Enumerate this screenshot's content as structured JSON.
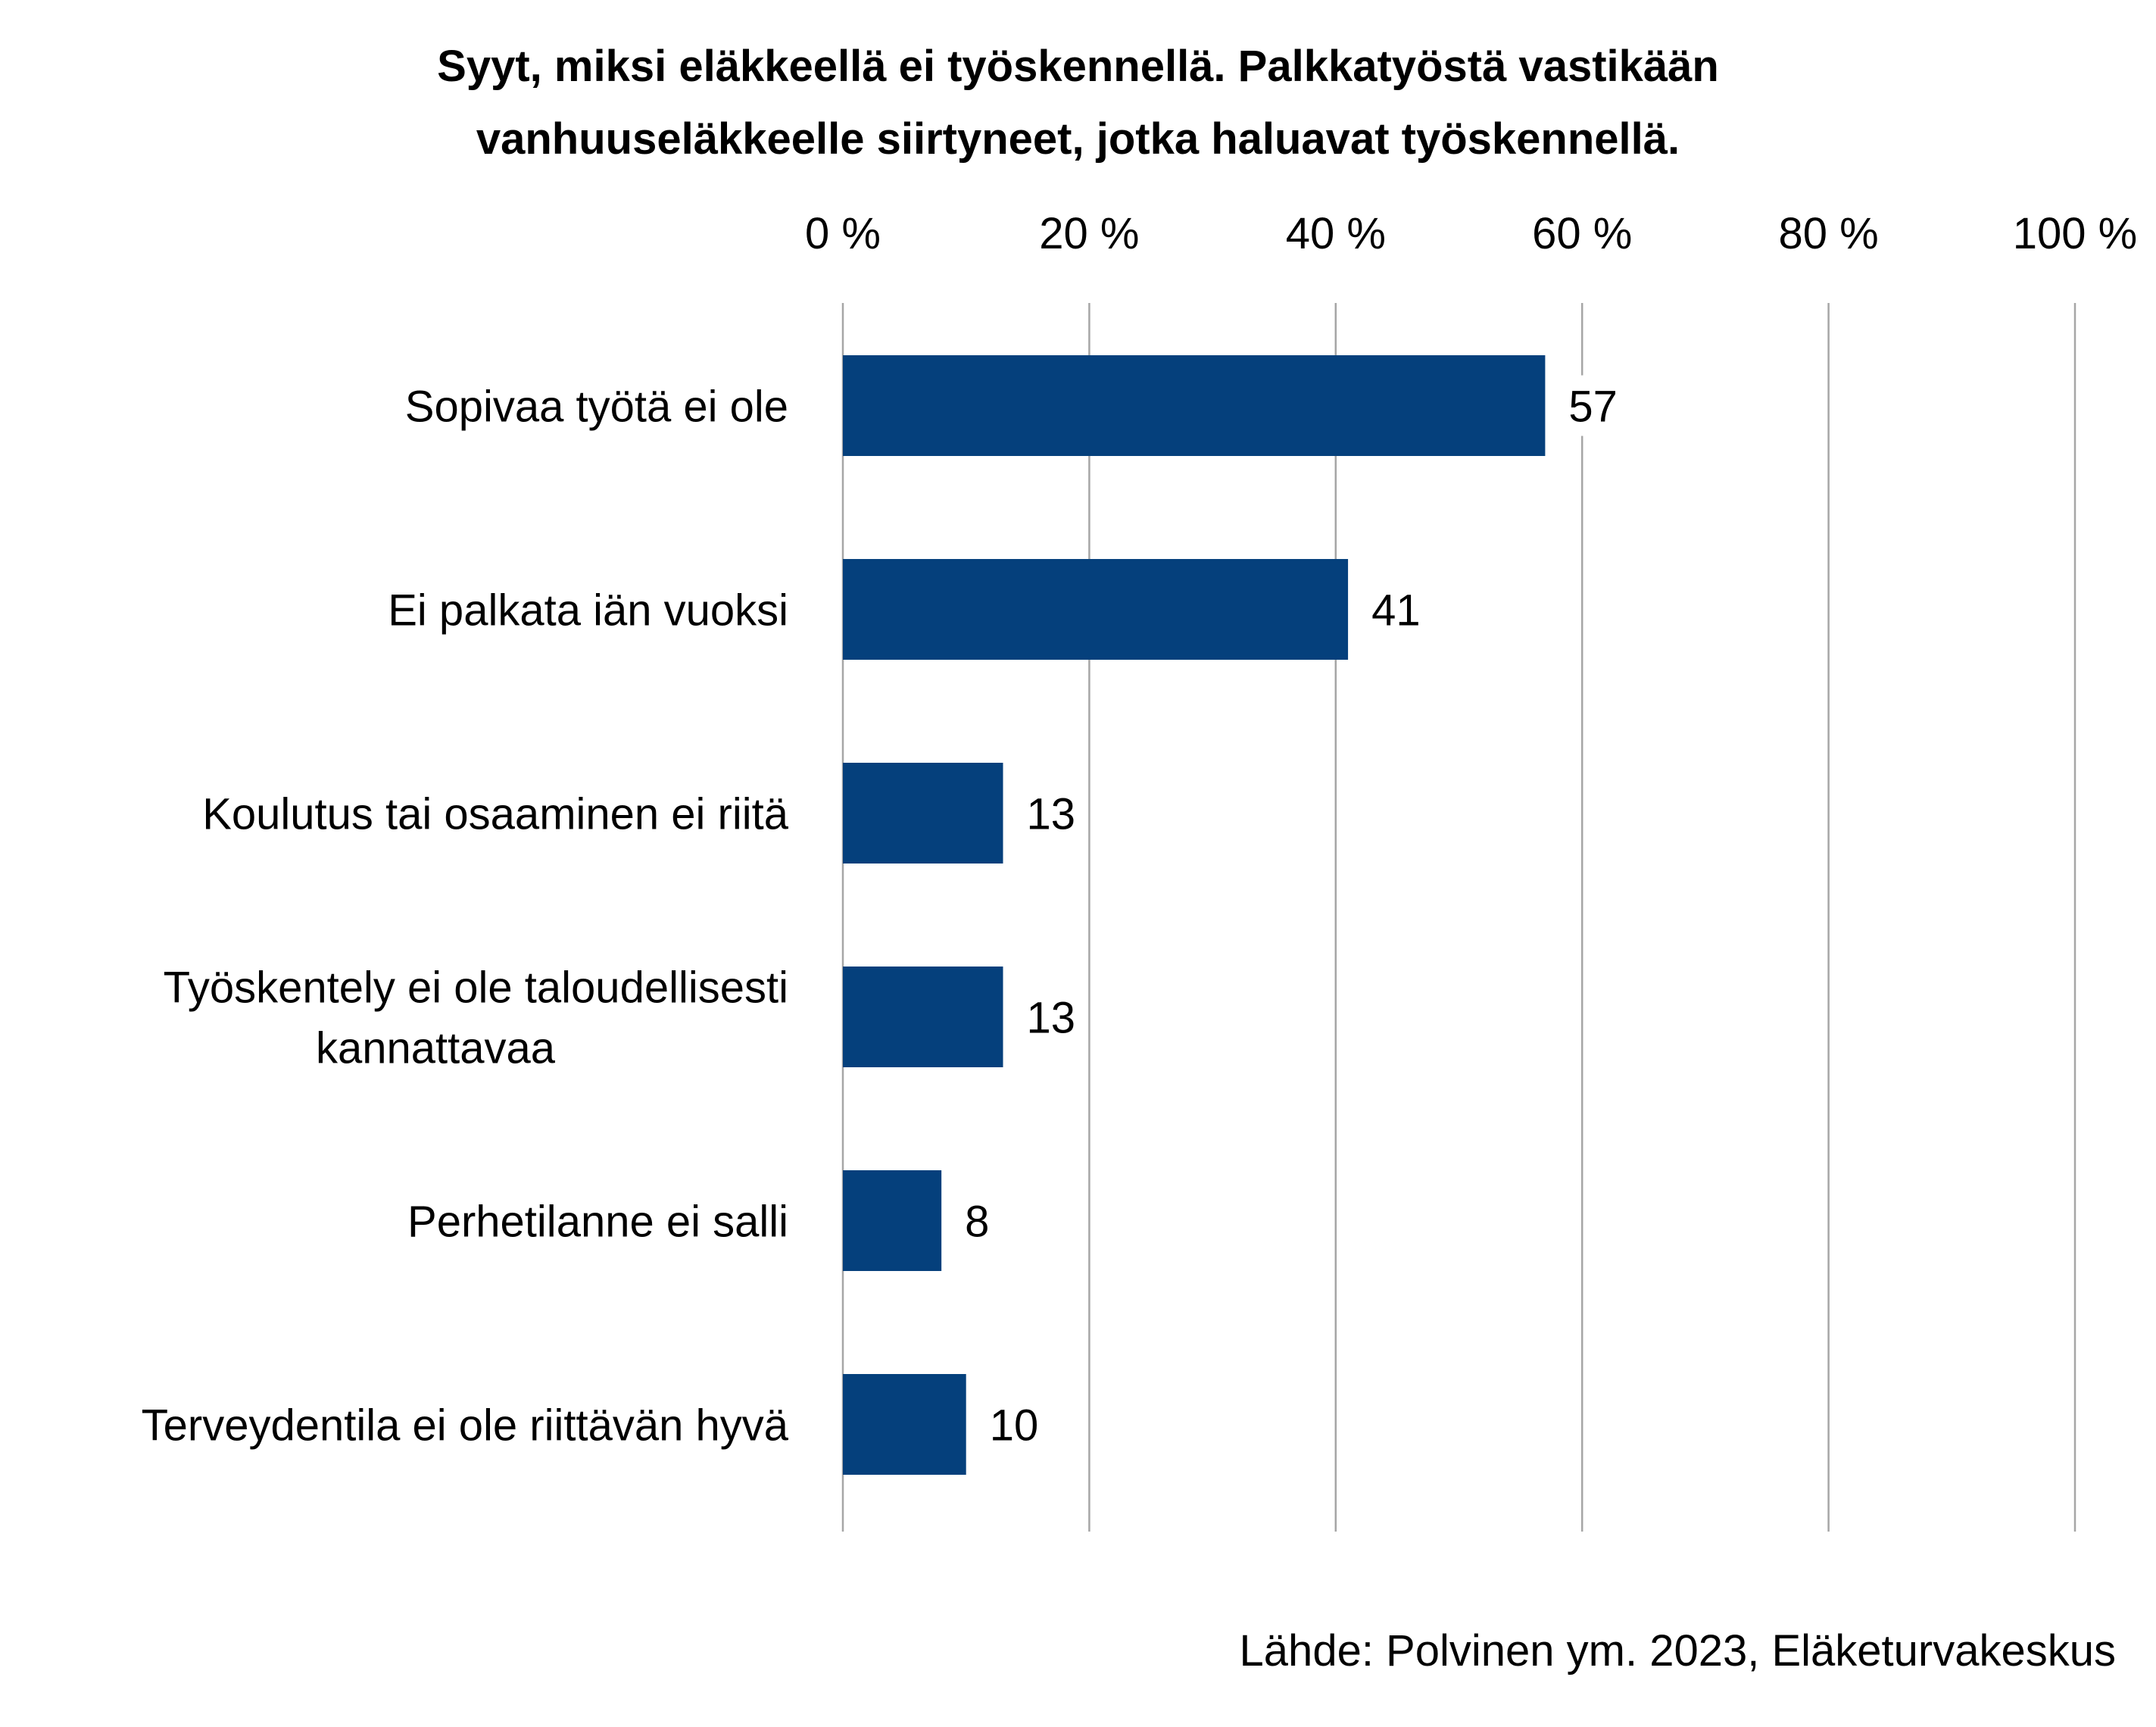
{
  "chart_data": {
    "type": "bar",
    "orientation": "horizontal",
    "title_lines": [
      "Syyt, miksi eläkkeellä ei työskennellä. Palkkatyöstä vastikään",
      "vanhuuseläkkeelle siirtyneet, jotka haluavat työskennellä."
    ],
    "categories": [
      [
        "Sopivaa työtä ei ole"
      ],
      [
        "Ei palkata iän vuoksi"
      ],
      [
        "Koulutus tai osaaminen ei riitä"
      ],
      [
        "Työskentely ei ole taloudellisesti",
        "kannattavaa"
      ],
      [
        "Perhetilanne ei salli"
      ],
      [
        "Terveydentila ei ole riittävän hyvä"
      ]
    ],
    "values": [
      57,
      41,
      13,
      13,
      8,
      10
    ],
    "value_labels": [
      "57",
      "41",
      "13",
      "13",
      "8",
      "10"
    ],
    "xlim": [
      0,
      100
    ],
    "x_ticks": [
      0,
      20,
      40,
      60,
      80,
      100
    ],
    "x_tick_labels": [
      "0 %",
      "20 %",
      "40 %",
      "60 %",
      "80 %",
      "100 %"
    ],
    "x_axis_position": "top",
    "grid": true,
    "legend": false,
    "xlabel": "",
    "ylabel": "",
    "colors": {
      "bar": "#05407C",
      "grid": "#A6A6A6"
    }
  },
  "source_note": "Lähde: Polvinen ym. 2023, Eläketurvakeskus"
}
